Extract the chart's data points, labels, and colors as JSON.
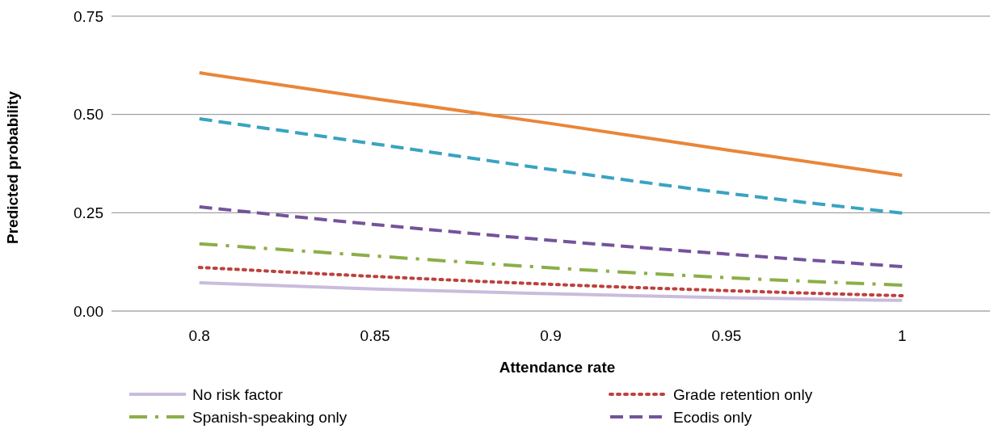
{
  "chart_data": {
    "type": "line",
    "xlabel": "Attendance rate",
    "ylabel": "Predicted probability",
    "categories": [
      "0.8",
      "0.85",
      "0.9",
      "0.95",
      "1"
    ],
    "ylim": [
      0,
      0.75
    ],
    "yticks": [
      {
        "value": 0,
        "label": "0.00"
      },
      {
        "value": 0.25,
        "label": "0.25"
      },
      {
        "value": 0.5,
        "label": "0.50"
      },
      {
        "value": 0.75,
        "label": "0.75"
      }
    ],
    "grid": "y",
    "legend": "bottom",
    "series": [
      {
        "color": "#e9863a",
        "line_style": "solid",
        "values": [
          0.606,
          0.54,
          0.477,
          0.41,
          0.345
        ]
      },
      {
        "color": "#3aa3c0",
        "line_style": "dashed",
        "values": [
          0.489,
          0.425,
          0.36,
          0.3,
          0.249
        ]
      },
      {
        "name": "No risk factor",
        "color": "#c9bcdc",
        "line_style": "solid",
        "values": [
          0.072,
          0.056,
          0.044,
          0.034,
          0.027
        ]
      },
      {
        "name": "Grade retention only",
        "color": "#bd413d",
        "line_style": "dotted",
        "values": [
          0.111,
          0.088,
          0.068,
          0.052,
          0.039
        ]
      },
      {
        "name": "Spanish-speaking only",
        "color": "#8cae48",
        "line_style": "dashdot",
        "values": [
          0.171,
          0.14,
          0.11,
          0.085,
          0.066
        ]
      },
      {
        "name": "Ecodis only",
        "color": "#74539b",
        "line_style": "dashed",
        "values": [
          0.265,
          0.22,
          0.18,
          0.145,
          0.113
        ]
      }
    ]
  }
}
